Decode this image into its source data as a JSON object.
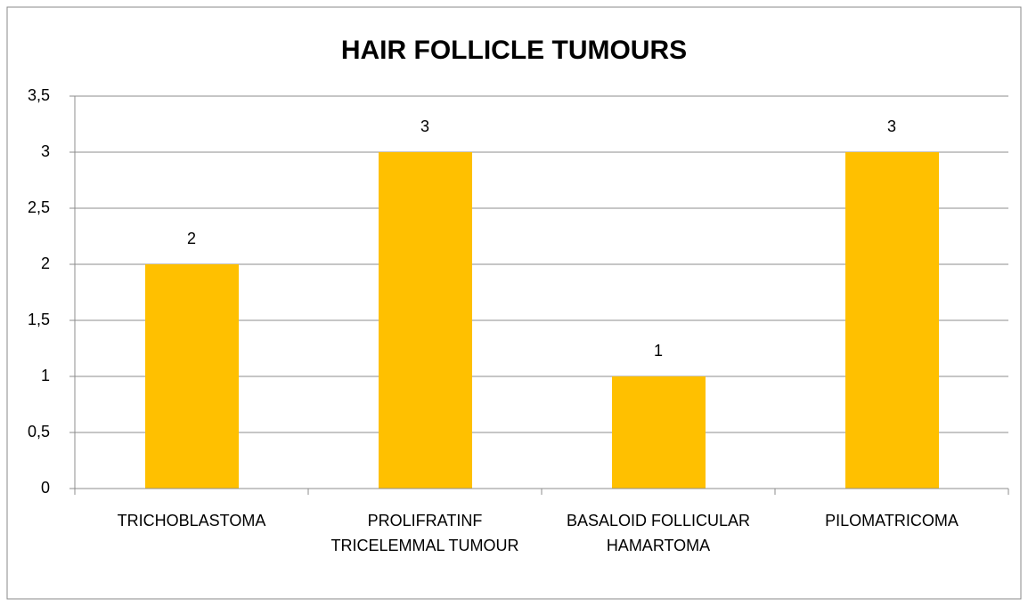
{
  "chart_data": {
    "type": "bar",
    "title": "HAIR  FOLLICLE  TUMOURS",
    "categories": [
      "TRICHOBLASTOMA",
      "PROLIFRATINF TRICELEMMAL TUMOUR",
      "BASALOID  FOLLICULAR HAMARTOMA",
      "PILOMATRICOMA"
    ],
    "values": [
      2,
      3,
      1,
      3
    ],
    "color": "#ffc000",
    "ylim": [
      0,
      3.5
    ],
    "yticks": [
      0,
      {
        "value": 0.5,
        "label": "0,5"
      },
      1,
      {
        "value": 1.5,
        "label": "1,5"
      },
      2,
      {
        "value": 2.5,
        "label": "2,5"
      },
      3,
      {
        "value": 3.5,
        "label": "3,5"
      }
    ],
    "grid": true
  }
}
